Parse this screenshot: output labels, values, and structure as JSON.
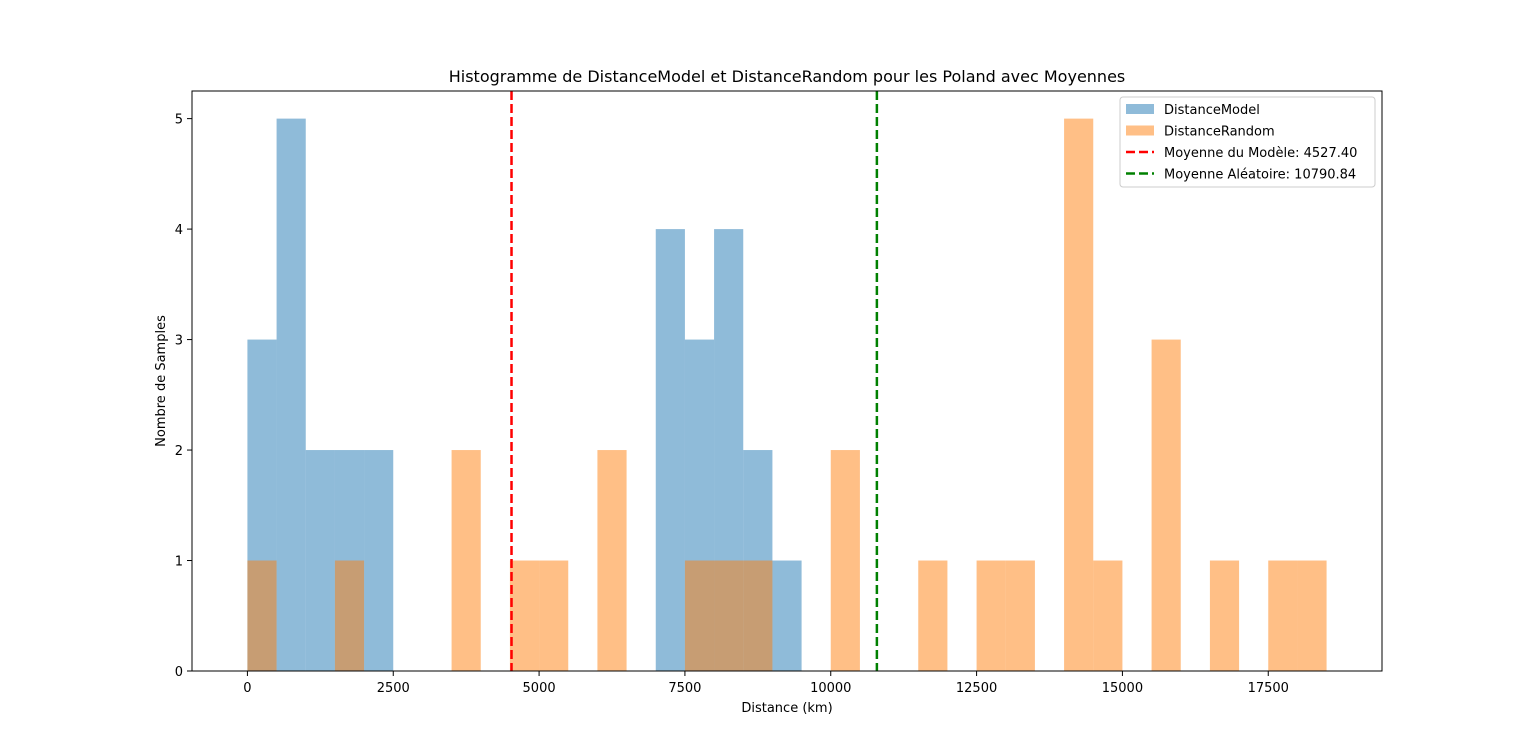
{
  "chart_data": {
    "type": "bar",
    "title": "Histogramme de DistanceModel et DistanceRandom pour les Poland avec Moyennes",
    "xlabel": "Distance (km)",
    "ylabel": "Nombre de Samples",
    "xlim": [
      -950,
      19450
    ],
    "ylim": [
      0,
      5.25
    ],
    "x_ticks": [
      0,
      2500,
      5000,
      7500,
      10000,
      12500,
      15000,
      17500
    ],
    "y_ticks": [
      0,
      1,
      2,
      3,
      4,
      5
    ],
    "grid": false,
    "legend_position": "top-right",
    "bin_width": 500,
    "series": [
      {
        "name": "DistanceModel",
        "color": "#1f77b4",
        "opacity": 0.5,
        "bins": [
          {
            "start": 0,
            "count": 3
          },
          {
            "start": 500,
            "count": 5
          },
          {
            "start": 1000,
            "count": 2
          },
          {
            "start": 1500,
            "count": 2
          },
          {
            "start": 2000,
            "count": 2
          },
          {
            "start": 7000,
            "count": 4
          },
          {
            "start": 7500,
            "count": 3
          },
          {
            "start": 8000,
            "count": 4
          },
          {
            "start": 8500,
            "count": 2
          },
          {
            "start": 9000,
            "count": 1
          }
        ]
      },
      {
        "name": "DistanceRandom",
        "color": "#ff7f0e",
        "opacity": 0.5,
        "bins": [
          {
            "start": 0,
            "count": 1
          },
          {
            "start": 1500,
            "count": 1
          },
          {
            "start": 3500,
            "count": 2
          },
          {
            "start": 4500,
            "count": 1
          },
          {
            "start": 5000,
            "count": 1
          },
          {
            "start": 6000,
            "count": 2
          },
          {
            "start": 7500,
            "count": 1
          },
          {
            "start": 8000,
            "count": 1
          },
          {
            "start": 8500,
            "count": 1
          },
          {
            "start": 10000,
            "count": 2
          },
          {
            "start": 11500,
            "count": 1
          },
          {
            "start": 12500,
            "count": 1
          },
          {
            "start": 13000,
            "count": 1
          },
          {
            "start": 14000,
            "count": 5
          },
          {
            "start": 14500,
            "count": 1
          },
          {
            "start": 15500,
            "count": 3
          },
          {
            "start": 16500,
            "count": 1
          },
          {
            "start": 17500,
            "count": 1
          },
          {
            "start": 18000,
            "count": 1
          }
        ]
      }
    ],
    "mean_lines": [
      {
        "label": "Moyenne du Modèle: 4527.40",
        "value": 4527.4,
        "color": "#ff0000"
      },
      {
        "label": "Moyenne Aléatoire: 10790.84",
        "value": 10790.84,
        "color": "#008000"
      }
    ]
  }
}
